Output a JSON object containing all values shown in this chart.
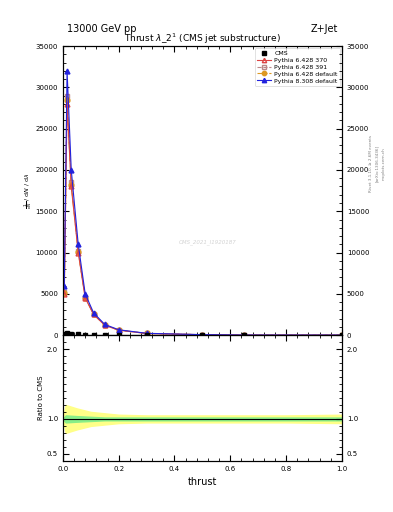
{
  "title": "13000 GeV pp",
  "right_title": "Z+Jet",
  "plot_title": "Thrust $\\lambda$_2$^1$ (CMS jet substructure)",
  "xlabel": "thrust",
  "ylabel_ratio": "Ratio to CMS",
  "cms_label": "CMS_2021_I1920187",
  "rivet_label": "Rivet 3.1.10, ≥ 2.6M events",
  "arxiv_label": "[arXiv:1306.3436]",
  "mcplots_label": "mcplots.cern.ch",
  "thrust_x": [
    0.005,
    0.015,
    0.03,
    0.055,
    0.08,
    0.11,
    0.15,
    0.2,
    0.3,
    0.5,
    0.65,
    1.0
  ],
  "cms_y": [
    100,
    200,
    150,
    80,
    40,
    20,
    10,
    5,
    2,
    1,
    0.5,
    0.2
  ],
  "py6_370_y": [
    5000,
    28000,
    18000,
    10000,
    4500,
    2500,
    1200,
    600,
    200,
    50,
    10,
    5
  ],
  "py6_391_y": [
    5200,
    29000,
    18500,
    10200,
    4600,
    2550,
    1220,
    610,
    205,
    52,
    11,
    5
  ],
  "py6_def_y": [
    5100,
    28500,
    18200,
    10100,
    4550,
    2520,
    1210,
    605,
    202,
    51,
    10,
    5
  ],
  "py8_def_y": [
    6000,
    32000,
    20000,
    11000,
    5000,
    2700,
    1300,
    650,
    220,
    60,
    13,
    7
  ],
  "ratio_x": [
    0.0,
    0.01,
    0.05,
    0.1,
    0.15,
    0.2,
    0.3,
    0.5,
    0.65,
    0.8,
    1.0
  ],
  "ratio_green_up": [
    1.0,
    1.05,
    1.04,
    1.03,
    1.02,
    1.02,
    1.02,
    1.02,
    1.02,
    1.02,
    1.02
  ],
  "ratio_green_lo": [
    1.0,
    0.95,
    0.96,
    0.97,
    0.98,
    0.98,
    0.98,
    0.98,
    0.98,
    0.98,
    0.98
  ],
  "ratio_yellow_up": [
    1.0,
    1.2,
    1.15,
    1.1,
    1.08,
    1.06,
    1.05,
    1.05,
    1.05,
    1.05,
    1.06
  ],
  "ratio_yellow_lo": [
    1.0,
    0.8,
    0.85,
    0.9,
    0.92,
    0.94,
    0.95,
    0.95,
    0.95,
    0.95,
    0.94
  ],
  "color_py6_370": "#dd4444",
  "color_py6_391": "#bb8888",
  "color_py6_def": "#dd9922",
  "color_py8_def": "#2222dd",
  "ylim_main": [
    0,
    35000
  ],
  "ylim_ratio": [
    0.4,
    2.2
  ],
  "yticks_main": [
    0,
    5000,
    10000,
    15000,
    20000,
    25000,
    30000,
    35000
  ],
  "yticks_ratio": [
    0.5,
    1.0,
    2.0
  ],
  "xlim": [
    0.0,
    1.0
  ]
}
